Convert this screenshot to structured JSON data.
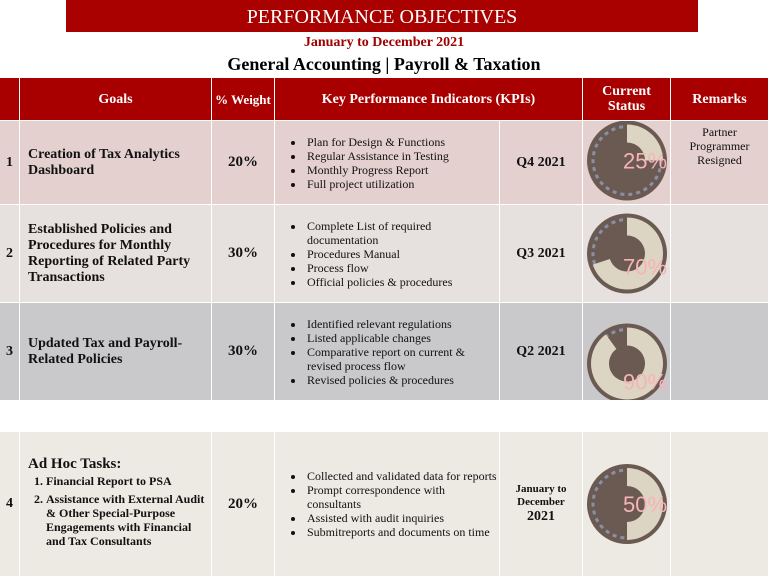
{
  "title": "PERFORMANCE OBJECTIVES",
  "period": "January to December 2021",
  "subtitle": "General Accounting | Payroll & Taxation",
  "headers": {
    "goals": "Goals",
    "weight": "% Weight",
    "kpi": "Key Performance Indicators (KPIs)",
    "status": "Current Status",
    "remarks": "Remarks"
  },
  "colors": {
    "header": "#a80000",
    "gauge_dark": "#6b5a52",
    "gauge_fill": "#ddd5c4",
    "gauge_label": "#f7b3b8"
  },
  "rows": [
    {
      "num": "1",
      "goal": "Creation of Tax Analytics Dashboard",
      "weight": "20%",
      "kpis": [
        "Plan for Design & Functions",
        "Regular Assistance in Testing",
        "Monthly Progress Report",
        "Full project utilization"
      ],
      "quarter": "Q4 2021",
      "status_pct": 25,
      "status_label": "25%",
      "remarks": "Partner Programmer Resigned"
    },
    {
      "num": "2",
      "goal": "Established Policies and Procedures for Monthly Reporting of Related Party Transactions",
      "weight": "30%",
      "kpis": [
        "Complete List of required documentation",
        "Procedures Manual",
        "Process flow",
        "Official policies & procedures"
      ],
      "quarter": "Q3 2021",
      "status_pct": 70,
      "status_label": "70%",
      "remarks": ""
    },
    {
      "num": "3",
      "goal": "Updated Tax and Payroll-Related Policies",
      "weight": "30%",
      "kpis": [
        "Identified relevant regulations",
        "Listed applicable changes",
        "Comparative report on current & revised process flow",
        "Revised policies & procedures"
      ],
      "quarter": "Q2 2021",
      "status_pct": 90,
      "status_label": "90%",
      "remarks": ""
    },
    {
      "num": "4",
      "goal": "Ad Hoc Tasks:",
      "subtasks": [
        "Financial Report to PSA",
        "Assistance with External Audit & Other Special-Purpose Engagements with Financial and Tax Consultants"
      ],
      "weight": "20%",
      "kpis": [
        "Collected and validated data for reports",
        "Prompt correspondence with consultants",
        "Assisted with audit inquiries",
        "Submitreports and documents on time"
      ],
      "quarter_line1": "January to December",
      "quarter_line2": "2021",
      "status_pct": 50,
      "status_label": "50%",
      "remarks": ""
    }
  ]
}
